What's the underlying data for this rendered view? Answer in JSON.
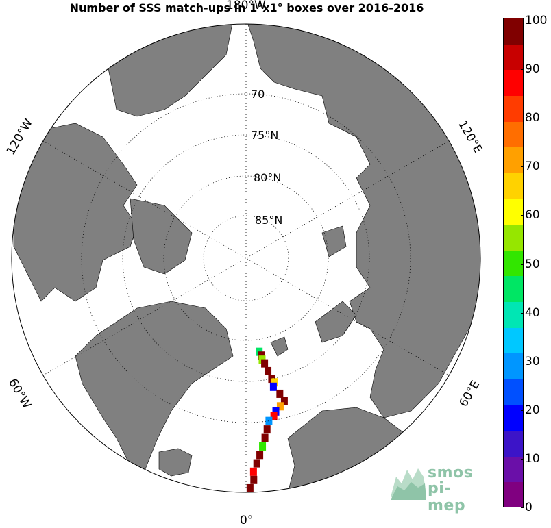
{
  "title": "Number of SSS match-ups in 1°x1° boxes over 2016-2016",
  "map": {
    "projection": "north polar stereographic",
    "meridian_labels": [
      "180°W",
      "120°W",
      "60°W",
      "0°",
      "60°E",
      "120°E"
    ],
    "parallel_labels": [
      "70",
      "75°N",
      "80°N",
      "85°N"
    ],
    "colors": {
      "land": "#808080",
      "ocean": "#ffffff",
      "grid": "#000000"
    }
  },
  "colorbar": {
    "ticks": [
      "0",
      "10",
      "20",
      "30",
      "40",
      "50",
      "60",
      "70",
      "80",
      "90",
      "100"
    ],
    "min": 0,
    "max": 100,
    "colors": [
      "#800080",
      "#6a0fa8",
      "#3c14c8",
      "#0000ff",
      "#0050ff",
      "#0096ff",
      "#00c8ff",
      "#00e6b4",
      "#00e664",
      "#32e600",
      "#96e600",
      "#ffff00",
      "#ffd200",
      "#ffa000",
      "#ff6e00",
      "#ff3c00",
      "#ff0000",
      "#c80000",
      "#800000"
    ]
  },
  "chart_data": {
    "type": "heatmap",
    "title": "Number of SSS match-ups in 1°x1° boxes over 2016-2016",
    "colorbar_range": [
      0,
      100
    ],
    "description_values": "match-up counts along a ship track from ~59°N to ~79°N near 0°-15°E",
    "track_cells": [
      {
        "lat": 78.5,
        "lon": 8,
        "count": 45
      },
      {
        "lat": 78,
        "lon": 9,
        "count": 100
      },
      {
        "lat": 77.5,
        "lon": 9,
        "count": 60
      },
      {
        "lat": 77,
        "lon": 10,
        "count": 100
      },
      {
        "lat": 76,
        "lon": 11,
        "count": 100
      },
      {
        "lat": 75,
        "lon": 12,
        "count": 100
      },
      {
        "lat": 74.5,
        "lon": 13,
        "count": 70
      },
      {
        "lat": 74,
        "lon": 12,
        "count": 20
      },
      {
        "lat": 73,
        "lon": 14,
        "count": 100
      },
      {
        "lat": 72,
        "lon": 15,
        "count": 100
      },
      {
        "lat": 71.5,
        "lon": 13,
        "count": 75
      },
      {
        "lat": 71,
        "lon": 11,
        "count": 20
      },
      {
        "lat": 70.5,
        "lon": 10,
        "count": 90
      },
      {
        "lat": 70,
        "lon": 8,
        "count": 30
      },
      {
        "lat": 69,
        "lon": 7,
        "count": 100
      },
      {
        "lat": 68,
        "lon": 6,
        "count": 100
      },
      {
        "lat": 67,
        "lon": 5,
        "count": 50
      },
      {
        "lat": 66,
        "lon": 4,
        "count": 100
      },
      {
        "lat": 65,
        "lon": 3,
        "count": 100
      },
      {
        "lat": 64,
        "lon": 2,
        "count": 90
      },
      {
        "lat": 63,
        "lon": 2,
        "count": 100
      },
      {
        "lat": 62,
        "lon": 1,
        "count": 100
      },
      {
        "lat": 61,
        "lon": 1,
        "count": 100
      },
      {
        "lat": 60,
        "lon": 2,
        "count": 35
      },
      {
        "lat": 59.5,
        "lon": 0,
        "count": 100
      }
    ]
  },
  "logo": {
    "line1": "smos",
    "line2": "pi-mep"
  }
}
